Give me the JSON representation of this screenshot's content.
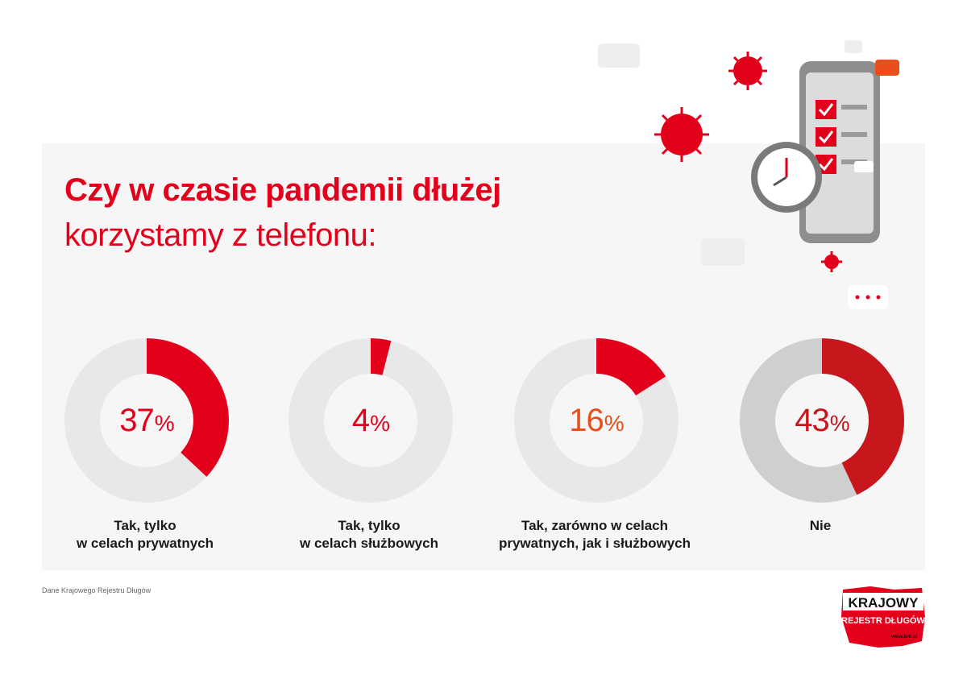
{
  "title": {
    "line1": "Czy w czasie pandemii dłużej",
    "line2": "korzystamy z telefonu:"
  },
  "colors": {
    "accent": "#e2001a",
    "track": "#e8e8e8",
    "accent_orange": "#e94e1b",
    "accent_dark": "#c8161d",
    "track_dark": "#cfcfcf"
  },
  "chart_data": {
    "type": "pie",
    "categories": [
      "Tak, tylko w celach prywatnych",
      "Tak, tylko w celach służbowych",
      "Tak, zarówno w celach prywatnych, jak i służbowych",
      "Nie"
    ],
    "values": [
      37,
      4,
      16,
      43
    ],
    "unit": "%",
    "items": [
      {
        "value": 37,
        "value_label": "37",
        "label_lines": [
          "Tak, tylko",
          "w celach prywatnych"
        ]
      },
      {
        "value": 4,
        "value_label": "4",
        "label_lines": [
          "Tak, tylko",
          "w celach służbowych"
        ]
      },
      {
        "value": 16,
        "value_label": "16",
        "label_lines": [
          "Tak, zarówno w celach",
          "prywatnych, jak i służbowych"
        ]
      },
      {
        "value": 43,
        "value_label": "43",
        "label_lines": [
          "Nie"
        ]
      }
    ]
  },
  "source": "Dane Krajowego Rejestru Długów",
  "logo": {
    "line1": "KRAJOWY",
    "line2": "REJESTR DŁUGÓW",
    "url": "www.krd.pl"
  }
}
